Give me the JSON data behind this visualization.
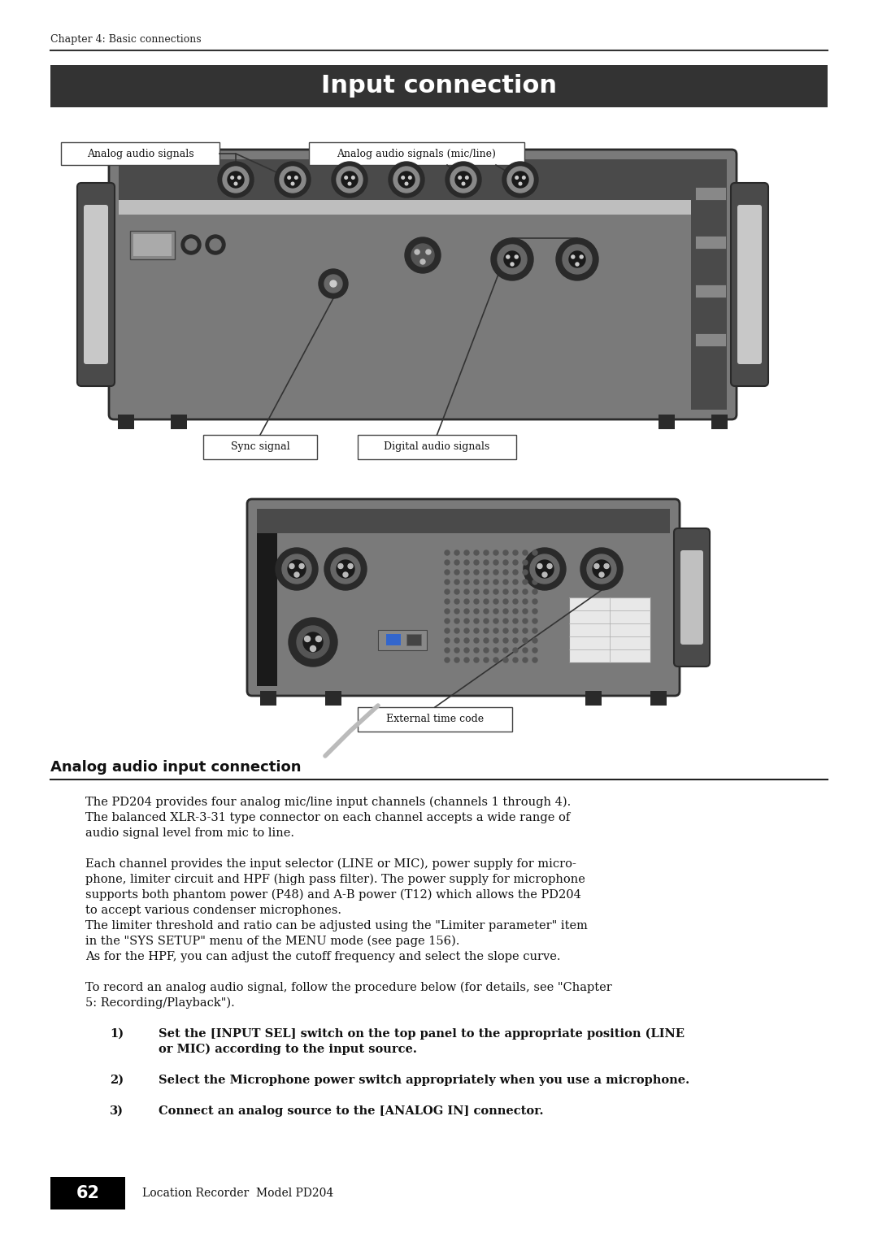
{
  "page_bg": "#ffffff",
  "chapter_text": "Chapter 4: Basic connections",
  "title": "Input connection",
  "title_bg": "#333333",
  "title_color": "#ffffff",
  "section_title": "Analog audio input connection",
  "label_analog_signals": "Analog audio signals",
  "label_analog_mic_line": "Analog audio signals (mic/line)",
  "label_sync": "Sync signal",
  "label_digital": "Digital audio signals",
  "label_ext_timecode": "External time code",
  "para1_line1": "The PD204 provides four analog mic/line input channels (channels 1 through 4).",
  "para1_line2": "The balanced XLR-3-31 type connector on each channel accepts a wide range of",
  "para1_line3": "audio signal level from mic to line.",
  "para2_line1": "Each channel provides the input selector (LINE or MIC), power supply for micro-",
  "para2_line2": "phone, limiter circuit and HPF (high pass filter). The power supply for microphone",
  "para2_line3": "supports both phantom power (P48) and A-B power (T12) which allows the PD204",
  "para2_line4": "to accept various condenser microphones.",
  "para2_line5": "The limiter threshold and ratio can be adjusted using the \"Limiter parameter\" item",
  "para2_line6": "in the \"SYS SETUP\" menu of the MENU mode (see page 156).",
  "para2_line7": "As for the HPF, you can adjust the cutoff frequency and select the slope curve.",
  "para3_line1": "To record an analog audio signal, follow the procedure below (for details, see \"Chapter",
  "para3_line2": "5: Recording/Playback\").",
  "step1_num": "1)",
  "step1_line1": "Set the [INPUT SEL] switch on the top panel to the appropriate position (LINE",
  "step1_line2": "or MIC) according to the input source.",
  "step2_num": "2)",
  "step2_text": "Select the Microphone power switch appropriately when you use a microphone.",
  "step3_num": "3)",
  "step3_text": "Connect an analog source to the [ANALOG IN] connector.",
  "page_num": "62",
  "footer_text": "Location Recorder  Model PD204",
  "footer_bg": "#000000",
  "footer_color": "#ffffff",
  "device_color": "#7a7a7a",
  "device_dark": "#4a4a4a",
  "device_darker": "#2a2a2a",
  "connector_color": "#1a1a1a",
  "connector_inner": "#555555"
}
